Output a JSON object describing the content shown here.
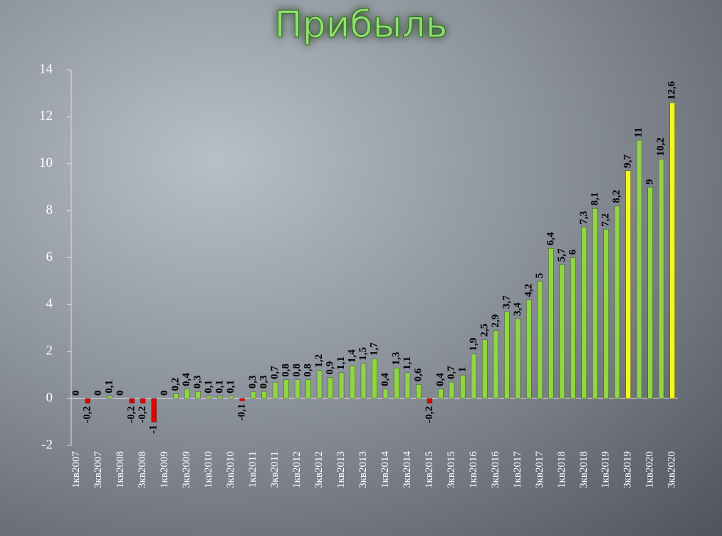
{
  "chart_data": {
    "type": "bar",
    "title": "Прибыль",
    "categories": [
      "1кв2007",
      null,
      "3кв2007",
      null,
      "1кв2008",
      null,
      "3кв2008",
      null,
      "1кв2009",
      null,
      "3кв2009",
      null,
      "1кв2010",
      null,
      "3кв2010",
      null,
      "1кв2011",
      null,
      "3кв2011",
      null,
      "1кв2012",
      null,
      "3кв2012",
      null,
      "1кв2013",
      null,
      "3кв2013",
      null,
      "1кв2014",
      null,
      "3кв2014",
      null,
      "1кв2015",
      null,
      "3кв2015",
      null,
      "1кв2016",
      null,
      "3кв2016",
      null,
      "1кв2017",
      null,
      "3кв2017",
      null,
      "1кв2018",
      null,
      "3кв2018",
      null,
      "1кв2019",
      null,
      "3кв2019",
      null,
      "1кв2020",
      null,
      "3кв2020"
    ],
    "values": [
      0,
      -0.2,
      0,
      0.1,
      0,
      -0.2,
      -0.2,
      -1,
      0,
      0.2,
      0.4,
      0.3,
      0.1,
      0.1,
      0.1,
      -0.1,
      0.3,
      0.3,
      0.7,
      0.8,
      0.8,
      0.8,
      1.2,
      0.9,
      1.1,
      1.4,
      1.5,
      1.7,
      0.4,
      1.3,
      1.1,
      0.6,
      -0.2,
      0.4,
      0.7,
      1,
      1.9,
      2.5,
      2.9,
      3.7,
      3.4,
      4.2,
      5,
      6.4,
      5.7,
      6,
      7.3,
      8.1,
      7.2,
      8.2,
      9.7,
      11,
      9,
      10.2,
      12.6
    ],
    "value_labels": [
      "0",
      "-0,2",
      "0",
      "0,1",
      "0",
      "-0,2",
      "-0,2",
      "-1",
      "0",
      "0,2",
      "0,4",
      "0,3",
      "0,1",
      "0,1",
      "0,1",
      "-0,1",
      "0,3",
      "0,3",
      "0,7",
      "0,8",
      "0,8",
      "0,8",
      "1,2",
      "0,9",
      "1,1",
      "1,4",
      "1,5",
      "1,7",
      "0,4",
      "1,3",
      "1,1",
      "0,6",
      "-0,2",
      "0,4",
      "0,7",
      "1",
      "1,9",
      "2,5",
      "2,9",
      "3,7",
      "3,4",
      "4,2",
      "5",
      "6,4",
      "5,7",
      "6",
      "7,3",
      "8,1",
      "7,2",
      "8,2",
      "9,7",
      "11",
      "9",
      "10,2",
      "12,6"
    ],
    "colors": [
      "#e00000",
      "#e00000",
      "#e00000",
      "#8fd640",
      "#e00000",
      "#e00000",
      "#e00000",
      "#e00000",
      "#8fd640",
      "#8fd640",
      "#8fd640",
      "#8fd640",
      "#8fd640",
      "#8fd640",
      "#8fd640",
      "#e00000",
      "#8fd640",
      "#8fd640",
      "#8fd640",
      "#8fd640",
      "#8fd640",
      "#8fd640",
      "#8fd640",
      "#8fd640",
      "#8fd640",
      "#8fd640",
      "#8fd640",
      "#8fd640",
      "#8fd640",
      "#8fd640",
      "#8fd640",
      "#8fd640",
      "#e00000",
      "#8fd640",
      "#8fd640",
      "#8fd640",
      "#8fd640",
      "#8fd640",
      "#8fd640",
      "#8fd640",
      "#8fd640",
      "#8fd640",
      "#8fd640",
      "#8fd640",
      "#8fd640",
      "#8fd640",
      "#8fd640",
      "#8fd640",
      "#8fd640",
      "#8fd640",
      "#f5f526",
      "#8fd640",
      "#8fd640",
      "#8fd640",
      "#f5f526"
    ],
    "ylim": [
      -2,
      14
    ],
    "yticks": [
      -2,
      0,
      2,
      4,
      6,
      8,
      10,
      12,
      14
    ],
    "grid": false
  }
}
